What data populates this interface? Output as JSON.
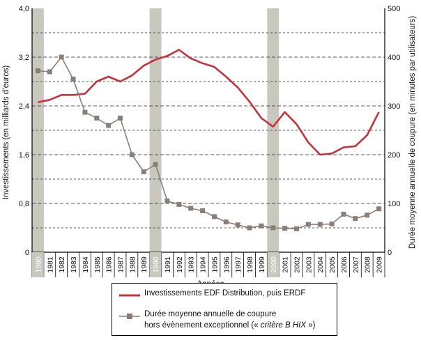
{
  "chart_data": {
    "type": "line",
    "xlabel": "Années",
    "ylabel_left": "Investissements (en milliards d’euros)",
    "ylabel_right": "Durée moyenne annuelle de coupure (en minutes par utilisateurs)",
    "x": [
      1980,
      1981,
      1982,
      1983,
      1984,
      1985,
      1986,
      1987,
      1988,
      1989,
      1990,
      1991,
      1992,
      1993,
      1994,
      1995,
      1996,
      1997,
      1998,
      1999,
      2000,
      2001,
      2002,
      2003,
      2004,
      2005,
      2006,
      2007,
      2008,
      2009
    ],
    "x_tick_labels": [
      "1980",
      "1981",
      "1982",
      "1983",
      "1984",
      "1985",
      "1986",
      "1987",
      "1988",
      "1989",
      "1990",
      "1991",
      "1992",
      "1993",
      "1994",
      "1995",
      "1996",
      "1997",
      "1998",
      "1999",
      "2000",
      "2001",
      "2002",
      "2003",
      "2004",
      "2005",
      "2006",
      "2007",
      "2008",
      "2009"
    ],
    "highlighted_years": [
      1980,
      1990,
      2000
    ],
    "ylim_left": [
      0,
      4.0
    ],
    "yticks_left": [
      "0",
      "0,8",
      "1,6",
      "2,4",
      "3,2",
      "4,0"
    ],
    "ylim_right": [
      0,
      500
    ],
    "yticks_right": [
      "0",
      "100",
      "200",
      "300",
      "400",
      "500"
    ],
    "series": [
      {
        "name": "Investissements EDF Distribution, puis ERDF",
        "axis": "left",
        "color": "#c8303a",
        "x": [
          1980,
          1981,
          1982,
          1983,
          1984,
          1985,
          1986,
          1987,
          1988,
          1989,
          1990,
          1991,
          1992,
          1993,
          1994,
          1995,
          1996,
          1997,
          1998,
          1999,
          2000,
          2001,
          2002,
          2003,
          2004,
          2005,
          2006,
          2007,
          2008,
          2009
        ],
        "values": [
          2.46,
          2.5,
          2.58,
          2.58,
          2.6,
          2.8,
          2.88,
          2.8,
          2.9,
          3.06,
          3.16,
          3.22,
          3.32,
          3.18,
          3.1,
          3.04,
          2.88,
          2.7,
          2.47,
          2.2,
          2.06,
          2.3,
          2.1,
          1.8,
          1.6,
          1.62,
          1.72,
          1.74,
          1.92,
          2.3
        ]
      },
      {
        "name": "Durée moyenne annuelle de coupure hors évènement exceptionnel (« critère B HIX »)",
        "name_line1": "Durée moyenne annuelle de coupure",
        "name_line2": "hors évènement exceptionnel (« ",
        "name_line2_em": "critère B HIX",
        "name_line2_end": " »)",
        "axis": "right",
        "color": "#8a7f78",
        "x": [
          1980,
          1981,
          1982,
          1983,
          1984,
          1985,
          1986,
          1987,
          1988,
          1989,
          1990,
          1991,
          1992,
          1993,
          1994,
          1995,
          1996,
          1997,
          1998,
          1999,
          2000,
          2001,
          2002,
          2003,
          2004,
          2005,
          2006,
          2007,
          2008,
          2009
        ],
        "values": [
          372,
          370,
          400,
          355,
          287,
          275,
          260,
          275,
          200,
          165,
          180,
          105,
          98,
          90,
          85,
          73,
          62,
          56,
          50,
          54,
          50,
          49,
          48,
          57,
          57,
          58,
          78,
          69,
          76,
          89
        ]
      }
    ]
  }
}
